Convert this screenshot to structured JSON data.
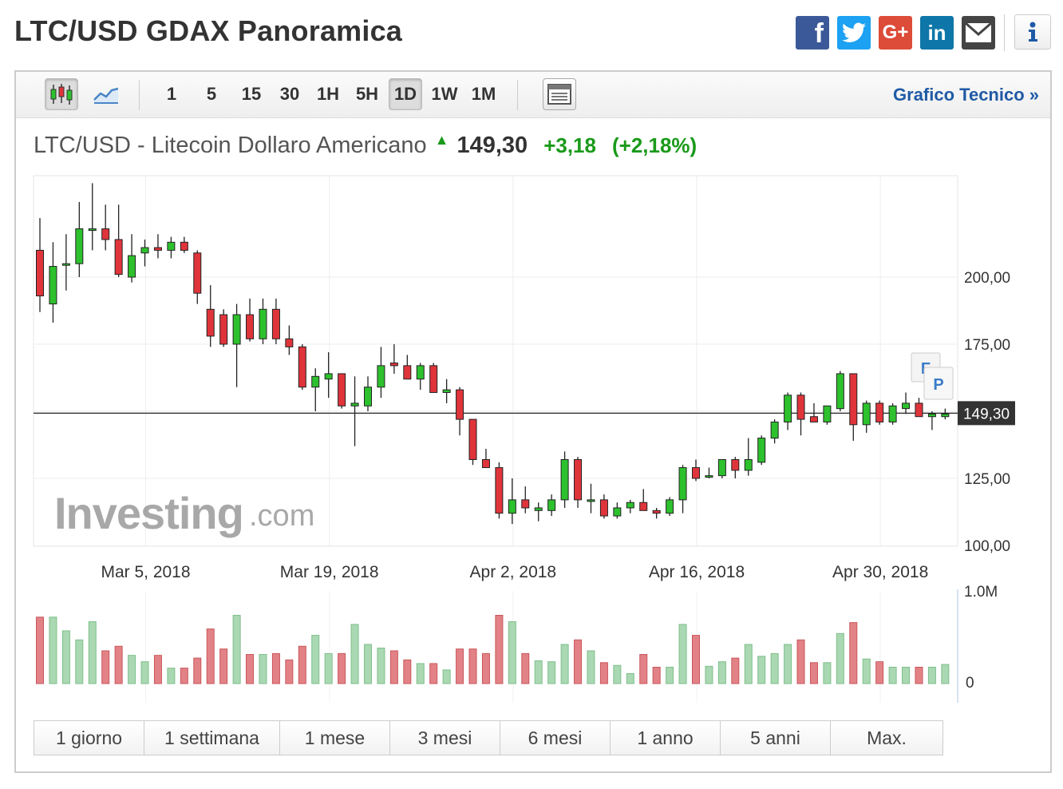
{
  "header": {
    "title": "LTC/USD GDAX Panoramica"
  },
  "share": {
    "facebook": "facebook-icon",
    "twitter": "twitter-icon",
    "googleplus": "G+",
    "linkedin": "in",
    "email": "mail-icon",
    "info": "info-icon"
  },
  "toolbar": {
    "timeframes": [
      "1",
      "5",
      "15",
      "30",
      "1H",
      "5H",
      "1D",
      "1W",
      "1M"
    ],
    "active_timeframe": "1D",
    "tech_link": "Grafico Tecnico »"
  },
  "quote": {
    "name": "LTC/USD - Litecoin Dollaro Americano",
    "price": "149,30",
    "change": "+3,18",
    "change_pct": "(+2,18%)"
  },
  "colors": {
    "up": "#2dc12d",
    "down": "#e0343b",
    "vol_up": "#a9d8b2",
    "vol_down": "#e28286",
    "positive_text": "#1a9a1a",
    "link": "#1f5aa5"
  },
  "watermark": {
    "brand": "Investing",
    "suffix": ".com"
  },
  "chart_data": {
    "type": "candlestick",
    "title": "LTC/USD - Litecoin Dollaro Americano",
    "y_ticks": [
      "200,00",
      "175,00",
      "125,00",
      "100,00"
    ],
    "ylim": [
      100,
      240
    ],
    "current_price": 149.3,
    "current_price_label": "149,30",
    "x_labels": [
      "Mar 5, 2018",
      "Mar 19, 2018",
      "Apr 2, 2018",
      "Apr 16, 2018",
      "Apr 30, 2018"
    ],
    "markers": [
      "F",
      "P"
    ],
    "volume_axis": [
      "1.0M",
      "0"
    ],
    "candles": [
      {
        "o": 210,
        "h": 222,
        "l": 187,
        "c": 193
      },
      {
        "o": 190,
        "h": 213,
        "l": 183,
        "c": 204
      },
      {
        "o": 205,
        "h": 216,
        "l": 195,
        "c": 205
      },
      {
        "o": 205,
        "h": 228,
        "l": 200,
        "c": 218
      },
      {
        "o": 218,
        "h": 235,
        "l": 210,
        "c": 218
      },
      {
        "o": 218,
        "h": 227,
        "l": 210,
        "c": 214
      },
      {
        "o": 214,
        "h": 227,
        "l": 200,
        "c": 201
      },
      {
        "o": 200,
        "h": 216,
        "l": 198,
        "c": 208
      },
      {
        "o": 209,
        "h": 214,
        "l": 204,
        "c": 211
      },
      {
        "o": 211,
        "h": 216,
        "l": 207,
        "c": 210
      },
      {
        "o": 210,
        "h": 215,
        "l": 207,
        "c": 213
      },
      {
        "o": 213,
        "h": 215,
        "l": 209,
        "c": 210
      },
      {
        "o": 209,
        "h": 210,
        "l": 190,
        "c": 194
      },
      {
        "o": 188,
        "h": 197,
        "l": 174,
        "c": 178
      },
      {
        "o": 186,
        "h": 188,
        "l": 174,
        "c": 175
      },
      {
        "o": 175,
        "h": 190,
        "l": 159,
        "c": 186
      },
      {
        "o": 186,
        "h": 192,
        "l": 176,
        "c": 177
      },
      {
        "o": 177,
        "h": 192,
        "l": 175,
        "c": 188
      },
      {
        "o": 188,
        "h": 192,
        "l": 175,
        "c": 177
      },
      {
        "o": 177,
        "h": 182,
        "l": 171,
        "c": 174
      },
      {
        "o": 174,
        "h": 175,
        "l": 158,
        "c": 159
      },
      {
        "o": 159,
        "h": 166,
        "l": 150,
        "c": 163
      },
      {
        "o": 162,
        "h": 172,
        "l": 155,
        "c": 164
      },
      {
        "o": 164,
        "h": 164,
        "l": 151,
        "c": 152
      },
      {
        "o": 152,
        "h": 163,
        "l": 137,
        "c": 153
      },
      {
        "o": 152,
        "h": 163,
        "l": 150,
        "c": 159
      },
      {
        "o": 159,
        "h": 174,
        "l": 155,
        "c": 167
      },
      {
        "o": 168,
        "h": 175,
        "l": 164,
        "c": 167
      },
      {
        "o": 167,
        "h": 171,
        "l": 162,
        "c": 162
      },
      {
        "o": 162,
        "h": 168,
        "l": 158,
        "c": 167
      },
      {
        "o": 167,
        "h": 168,
        "l": 157,
        "c": 157
      },
      {
        "o": 157,
        "h": 162,
        "l": 153,
        "c": 158
      },
      {
        "o": 158,
        "h": 159,
        "l": 141,
        "c": 147
      },
      {
        "o": 147,
        "h": 147,
        "l": 130,
        "c": 132
      },
      {
        "o": 132,
        "h": 136,
        "l": 129,
        "c": 129
      },
      {
        "o": 129,
        "h": 131,
        "l": 110,
        "c": 112
      },
      {
        "o": 112,
        "h": 125,
        "l": 108,
        "c": 117
      },
      {
        "o": 117,
        "h": 122,
        "l": 112,
        "c": 114
      },
      {
        "o": 113,
        "h": 116,
        "l": 109,
        "c": 114
      },
      {
        "o": 113,
        "h": 119,
        "l": 111,
        "c": 117
      },
      {
        "o": 117,
        "h": 135,
        "l": 114,
        "c": 132
      },
      {
        "o": 132,
        "h": 133,
        "l": 114,
        "c": 117
      },
      {
        "o": 117,
        "h": 123,
        "l": 112,
        "c": 117
      },
      {
        "o": 117,
        "h": 119,
        "l": 110,
        "c": 111
      },
      {
        "o": 111,
        "h": 116,
        "l": 110,
        "c": 114
      },
      {
        "o": 114,
        "h": 117,
        "l": 112,
        "c": 116
      },
      {
        "o": 116,
        "h": 121,
        "l": 113,
        "c": 113
      },
      {
        "o": 113,
        "h": 114,
        "l": 110,
        "c": 112
      },
      {
        "o": 112,
        "h": 118,
        "l": 111,
        "c": 117
      },
      {
        "o": 117,
        "h": 130,
        "l": 112,
        "c": 129
      },
      {
        "o": 129,
        "h": 132,
        "l": 124,
        "c": 125
      },
      {
        "o": 126,
        "h": 129,
        "l": 125,
        "c": 126
      },
      {
        "o": 126,
        "h": 132,
        "l": 125,
        "c": 132
      },
      {
        "o": 132,
        "h": 133,
        "l": 125,
        "c": 128
      },
      {
        "o": 128,
        "h": 140,
        "l": 126,
        "c": 132
      },
      {
        "o": 131,
        "h": 141,
        "l": 130,
        "c": 140
      },
      {
        "o": 140,
        "h": 147,
        "l": 138,
        "c": 146
      },
      {
        "o": 146,
        "h": 157,
        "l": 143,
        "c": 156
      },
      {
        "o": 156,
        "h": 157,
        "l": 141,
        "c": 147
      },
      {
        "o": 148,
        "h": 153,
        "l": 146,
        "c": 146
      },
      {
        "o": 146,
        "h": 152,
        "l": 145,
        "c": 152
      },
      {
        "o": 151,
        "h": 165,
        "l": 150,
        "c": 164
      },
      {
        "o": 164,
        "h": 164,
        "l": 139,
        "c": 145
      },
      {
        "o": 145,
        "h": 154,
        "l": 142,
        "c": 153
      },
      {
        "o": 153,
        "h": 154,
        "l": 145,
        "c": 146
      },
      {
        "o": 146,
        "h": 153,
        "l": 145,
        "c": 152
      },
      {
        "o": 151,
        "h": 157,
        "l": 149,
        "c": 153
      },
      {
        "o": 153,
        "h": 155,
        "l": 148,
        "c": 148
      },
      {
        "o": 148,
        "h": 150,
        "l": 143,
        "c": 149
      },
      {
        "o": 148,
        "h": 151,
        "l": 147,
        "c": 149
      }
    ],
    "volumes": [
      0.73,
      0.73,
      0.58,
      0.48,
      0.68,
      0.36,
      0.41,
      0.31,
      0.24,
      0.31,
      0.17,
      0.17,
      0.28,
      0.6,
      0.38,
      0.75,
      0.32,
      0.32,
      0.33,
      0.26,
      0.41,
      0.53,
      0.33,
      0.33,
      0.65,
      0.43,
      0.39,
      0.36,
      0.26,
      0.22,
      0.22,
      0.15,
      0.38,
      0.38,
      0.33,
      0.75,
      0.68,
      0.33,
      0.25,
      0.24,
      0.43,
      0.48,
      0.36,
      0.23,
      0.2,
      0.11,
      0.32,
      0.18,
      0.18,
      0.65,
      0.53,
      0.19,
      0.24,
      0.28,
      0.43,
      0.3,
      0.33,
      0.43,
      0.48,
      0.23,
      0.23,
      0.55,
      0.67,
      0.27,
      0.24,
      0.18,
      0.18,
      0.18,
      0.18,
      0.21
    ]
  },
  "ranges": [
    "1 giorno",
    "1 settimana",
    "1 mese",
    "3 mesi",
    "6 mesi",
    "1 anno",
    "5 anni",
    "Max."
  ]
}
